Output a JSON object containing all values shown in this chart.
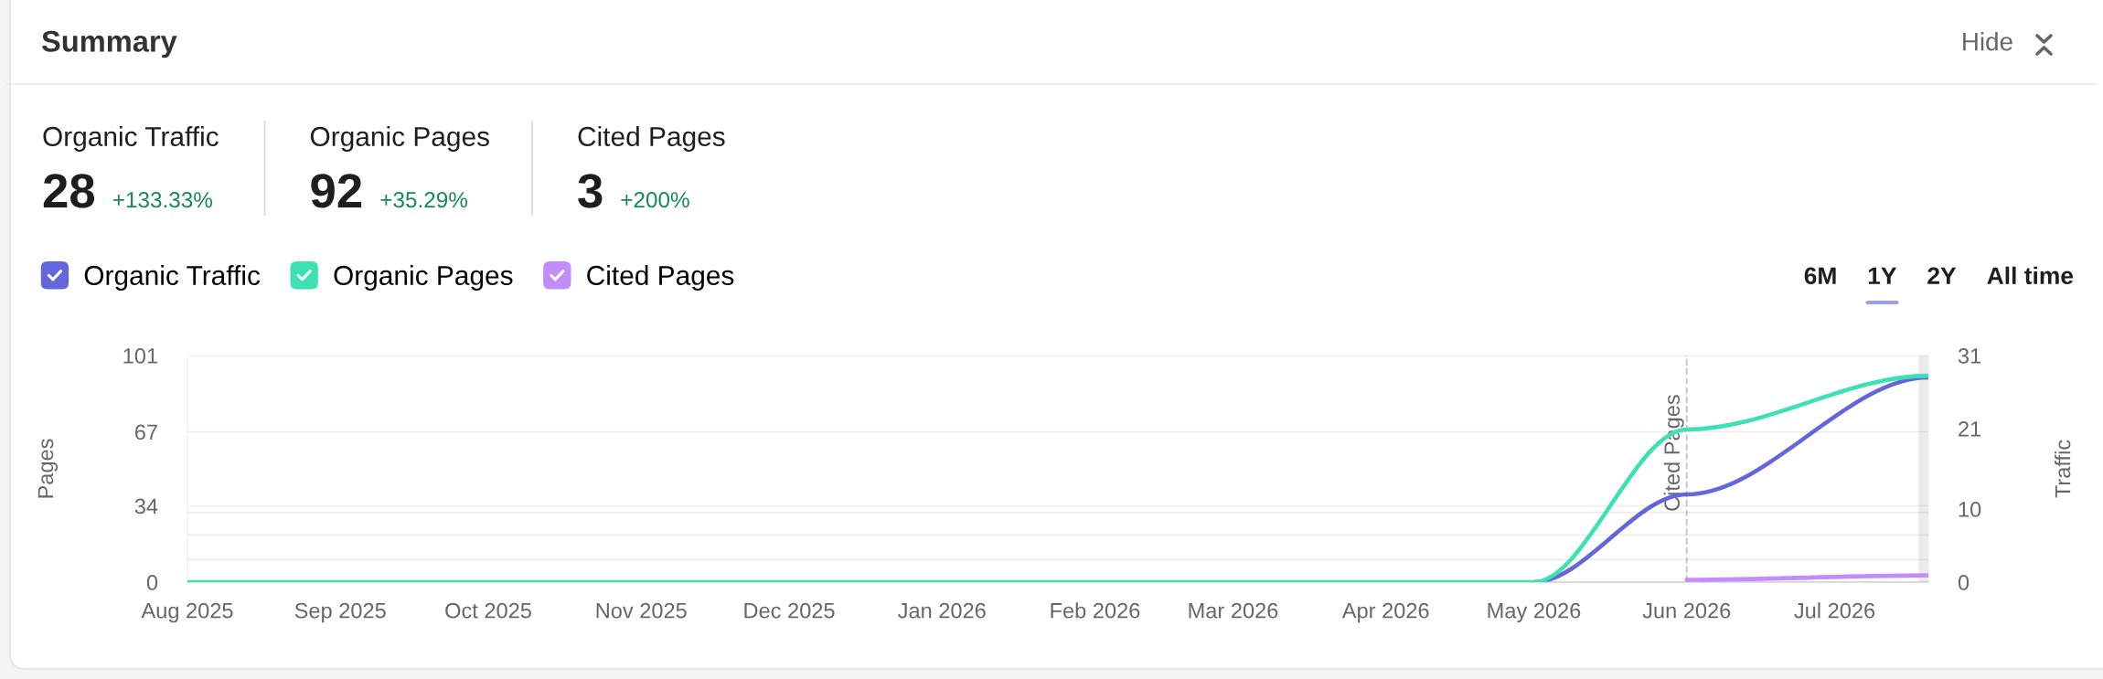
{
  "chart_data": [
    {
      "type": "other",
      "title": "Summary",
      "categories": [
        "Organic Traffic",
        "Organic Pages",
        "Cited Pages"
      ],
      "values": [
        28,
        92,
        3
      ],
      "data_labels": true,
      "annotations": [
        "+133.33%",
        "+35.29%",
        "+200%",
        "Hide"
      ]
    },
    {
      "type": "line",
      "x": [
        "2025-08-01",
        "2025-09-01",
        "2025-10-01",
        "2025-11-01",
        "2025-12-01",
        "2026-01-01",
        "2026-02-01",
        "2026-03-01",
        "2026-04-01",
        "2026-05-01",
        "2026-06-01",
        "2026-07-20"
      ],
      "series": [
        {
          "name": "Organic Traffic",
          "color": "#6466dc",
          "axis": "y2",
          "values": [
            null,
            null,
            null,
            null,
            null,
            null,
            null,
            null,
            null,
            0,
            12,
            28
          ]
        },
        {
          "name": "Organic Pages",
          "color": "#3ce2b3",
          "values": [
            0,
            0,
            0,
            0,
            0,
            0,
            0,
            0,
            0,
            0,
            68,
            92
          ]
        },
        {
          "name": "Cited Pages",
          "color": "#c38cfb",
          "values": [
            null,
            null,
            null,
            null,
            null,
            null,
            null,
            null,
            null,
            null,
            1,
            3
          ]
        }
      ],
      "xlim": [
        "2025-08-01",
        "2026-07-20"
      ],
      "xticks": [
        {
          "value": "2025-08-01",
          "label": "Aug 2025"
        },
        {
          "value": "2025-09-01",
          "label": "Sep 2025"
        },
        {
          "value": "2025-10-01",
          "label": "Oct 2025"
        },
        {
          "value": "2025-11-01",
          "label": "Nov 2025"
        },
        {
          "value": "2025-12-01",
          "label": "Dec 2025"
        },
        {
          "value": "2026-01-01",
          "label": "Jan 2026"
        },
        {
          "value": "2026-02-01",
          "label": "Feb 2026"
        },
        {
          "value": "2026-03-01",
          "label": "Mar 2026"
        },
        {
          "value": "2026-04-01",
          "label": "Apr 2026"
        },
        {
          "value": "2026-05-01",
          "label": "May 2026"
        },
        {
          "value": "2026-06-01",
          "label": "Jun 2026"
        },
        {
          "value": "2026-07-01",
          "label": "Jul 2026"
        }
      ],
      "ylim": [
        0,
        101
      ],
      "yticks": [
        0,
        {
          "value": 10,
          "label": null
        },
        {
          "value": 21,
          "label": null
        },
        {
          "value": 31,
          "label": null
        },
        34,
        67,
        101
      ],
      "y2lim": [
        0,
        31
      ],
      "y2ticks": [
        0,
        10,
        21,
        31
      ],
      "ylabel": "Pages",
      "y2label": "Traffic",
      "grid": "y",
      "legend": "top left",
      "marker": "none",
      "line_style": "solid",
      "ref_lines": [
        {
          "axis": "x",
          "value": "2026-06-01",
          "label": "Cited Pages",
          "color": "#c8c8c8",
          "line_style": "dashed"
        }
      ],
      "bands": [
        {
          "axis": "x",
          "from": "2026-07-18",
          "to": "2026-07-20",
          "color": "#e9ecea"
        }
      ],
      "annotations": [
        "6M",
        "1Y",
        "2Y",
        "All time"
      ]
    }
  ]
}
